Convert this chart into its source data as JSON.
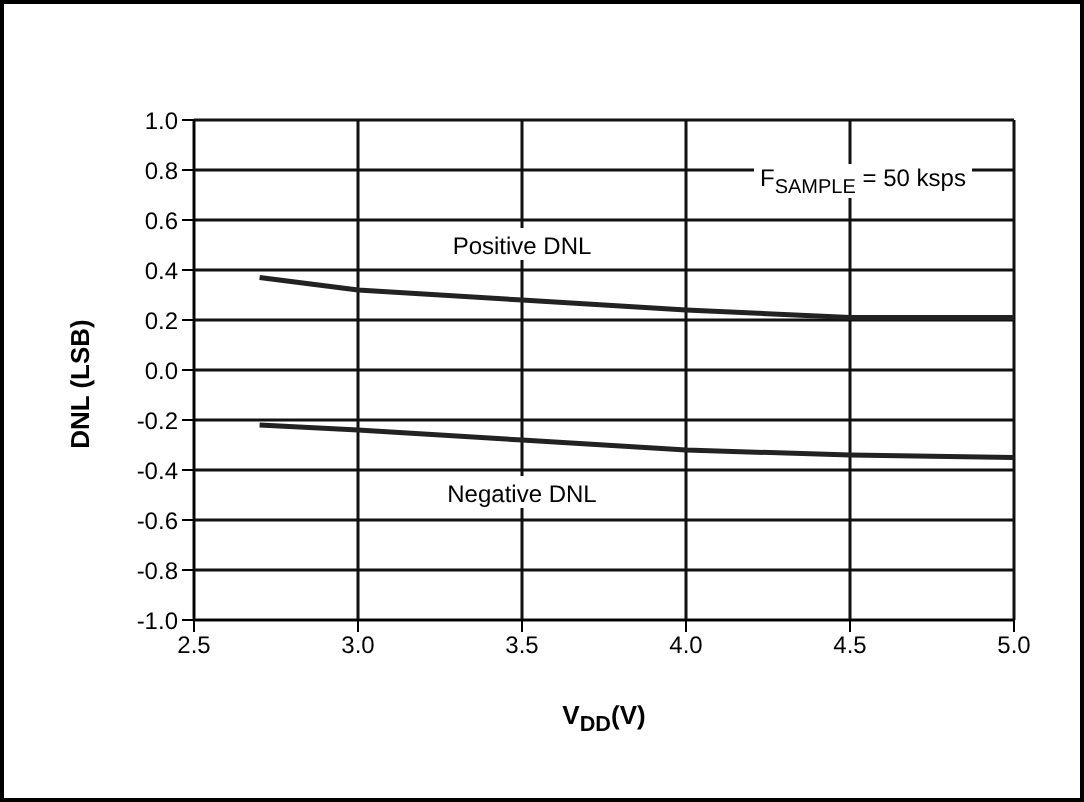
{
  "chart_data": {
    "type": "line",
    "xlabel": "V$_{DD}$(V)",
    "ylabel": "DNL (LSB)",
    "x": [
      2.7,
      3.0,
      3.5,
      4.0,
      4.5,
      5.0
    ],
    "series": [
      {
        "name": "Positive DNL",
        "color": "#222222",
        "values": [
          0.37,
          0.32,
          0.28,
          0.24,
          0.21,
          0.21
        ]
      },
      {
        "name": "Negative DNL",
        "color": "#222222",
        "values": [
          -0.22,
          -0.24,
          -0.28,
          -0.32,
          -0.34,
          -0.35
        ]
      }
    ],
    "xlim": [
      2.5,
      5.0
    ],
    "xticks": [
      {
        "value": 2.5,
        "label": "2.5"
      },
      {
        "value": 3.0,
        "label": "3.0"
      },
      {
        "value": 3.5,
        "label": "3.5"
      },
      {
        "value": 4.0,
        "label": "4.0"
      },
      {
        "value": 4.5,
        "label": "4.5"
      },
      {
        "value": 5.0,
        "label": "5.0"
      }
    ],
    "ylim": [
      -1.0,
      1.0
    ],
    "yticks": [
      {
        "value": -1.0,
        "label": "-1.0"
      },
      {
        "value": -0.8,
        "label": "-0.8"
      },
      {
        "value": -0.6,
        "label": "-0.6"
      },
      {
        "value": -0.4,
        "label": "-0.4"
      },
      {
        "value": -0.2,
        "label": "-0.2"
      },
      {
        "value": 0,
        "label": "0.0"
      },
      {
        "value": 0.2,
        "label": "0.2"
      },
      {
        "value": 0.4,
        "label": "0.4"
      },
      {
        "value": 0.6,
        "label": "0.6"
      },
      {
        "value": 0.8,
        "label": "0.8"
      },
      {
        "value": 1.0,
        "label": "1.0"
      }
    ],
    "grid": true,
    "marker": "none",
    "line_style": "solid",
    "legend": false,
    "annotations": [
      "F$_{SAMPLE}$ = 50 ksps"
    ]
  }
}
